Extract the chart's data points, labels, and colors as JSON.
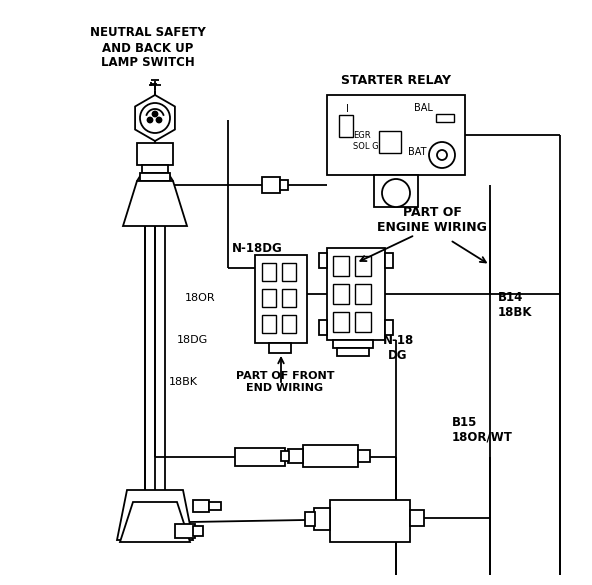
{
  "background": "#ffffff",
  "lc": "#000000",
  "figsize": [
    5.92,
    5.85
  ],
  "dpi": 100,
  "texts": {
    "neutral_safety": "NEUTRAL SAFETY\nAND BACK UP\nLAMP SWITCH",
    "starter_relay": "STARTER RELAY",
    "part_engine": "PART OF\nENGINE WIRING",
    "part_front": "PART OF FRONT\nEND WIRING",
    "n18dg_label": "N-18DG",
    "n18_dg2": "N-18\nDG",
    "b14_18bk": "B14\n18BK",
    "b15_18orwt": "B15\n18OR/WT",
    "18or": "18OR",
    "18dg": "18DG",
    "18bk": "18BK",
    "bal": "BAL",
    "bat": "BAT",
    "egr_sol": "EGR\nSOL G",
    "i_term": "I"
  }
}
